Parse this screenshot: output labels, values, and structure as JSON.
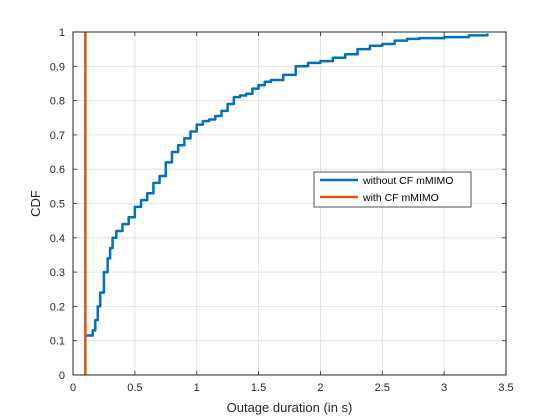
{
  "chart_data": {
    "type": "line",
    "xlabel": "Outage duration (in s)",
    "ylabel": "CDF",
    "xlim": [
      0,
      3.5
    ],
    "ylim": [
      0,
      1
    ],
    "xticks": [
      "0",
      "0.5",
      "1",
      "1.5",
      "2",
      "2.5",
      "3",
      "3.5"
    ],
    "yticks": [
      "0",
      "0.1",
      "0.2",
      "0.3",
      "0.4",
      "0.5",
      "0.6",
      "0.7",
      "0.8",
      "0.9",
      "1"
    ],
    "grid": true,
    "legend_position": "right-center",
    "series": [
      {
        "name": "without CF mMIMO",
        "color": "#0072BD",
        "points": [
          [
            0.1,
            0.115
          ],
          [
            0.15,
            0.115
          ],
          [
            0.16,
            0.13
          ],
          [
            0.18,
            0.16
          ],
          [
            0.2,
            0.2
          ],
          [
            0.22,
            0.24
          ],
          [
            0.25,
            0.3
          ],
          [
            0.28,
            0.34
          ],
          [
            0.3,
            0.37
          ],
          [
            0.32,
            0.4
          ],
          [
            0.35,
            0.42
          ],
          [
            0.4,
            0.44
          ],
          [
            0.45,
            0.46
          ],
          [
            0.5,
            0.49
          ],
          [
            0.55,
            0.51
          ],
          [
            0.6,
            0.53
          ],
          [
            0.65,
            0.56
          ],
          [
            0.7,
            0.58
          ],
          [
            0.75,
            0.62
          ],
          [
            0.8,
            0.65
          ],
          [
            0.85,
            0.67
          ],
          [
            0.9,
            0.69
          ],
          [
            0.95,
            0.71
          ],
          [
            1.0,
            0.73
          ],
          [
            1.05,
            0.74
          ],
          [
            1.1,
            0.745
          ],
          [
            1.15,
            0.755
          ],
          [
            1.2,
            0.77
          ],
          [
            1.25,
            0.79
          ],
          [
            1.3,
            0.81
          ],
          [
            1.35,
            0.815
          ],
          [
            1.4,
            0.82
          ],
          [
            1.45,
            0.835
          ],
          [
            1.5,
            0.845
          ],
          [
            1.55,
            0.855
          ],
          [
            1.6,
            0.86
          ],
          [
            1.7,
            0.875
          ],
          [
            1.8,
            0.9
          ],
          [
            1.9,
            0.91
          ],
          [
            2.0,
            0.915
          ],
          [
            2.1,
            0.925
          ],
          [
            2.2,
            0.935
          ],
          [
            2.3,
            0.95
          ],
          [
            2.4,
            0.96
          ],
          [
            2.5,
            0.965
          ],
          [
            2.6,
            0.975
          ],
          [
            2.7,
            0.98
          ],
          [
            2.8,
            0.982
          ],
          [
            3.0,
            0.985
          ],
          [
            3.2,
            0.99
          ],
          [
            3.35,
            0.996
          ]
        ]
      },
      {
        "name": "with CF mMIMO",
        "color": "#D95319",
        "points": [
          [
            0.1,
            0
          ],
          [
            0.1,
            1
          ]
        ]
      }
    ]
  }
}
